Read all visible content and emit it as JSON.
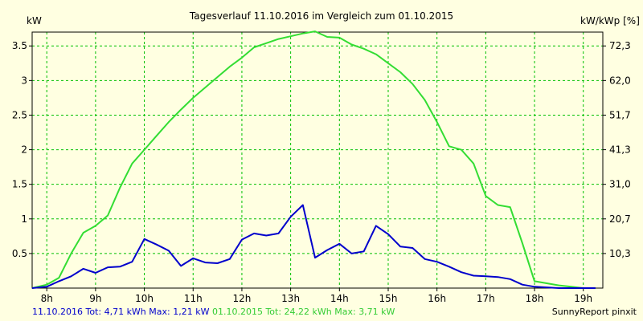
{
  "chart_data": {
    "type": "line",
    "title": "Tagesverlauf 11.10.2016 im Vergleich zum 01.10.2015",
    "ylabel_left": "kW",
    "ylabel_right": "kW/kWp [%]",
    "xlim": [
      7.7,
      19.4
    ],
    "ylim": [
      0,
      3.7
    ],
    "yticks_left": [
      {
        "value": 0.5,
        "label": "0.5"
      },
      {
        "value": 1,
        "label": "1"
      },
      {
        "value": 1.5,
        "label": "1.5"
      },
      {
        "value": 2,
        "label": "2"
      },
      {
        "value": 2.5,
        "label": "2.5"
      },
      {
        "value": 3,
        "label": "3"
      },
      {
        "value": 3.5,
        "label": "3.5"
      }
    ],
    "yticks_right": [
      {
        "value": 0.5,
        "label": "10,3"
      },
      {
        "value": 1,
        "label": "20,7"
      },
      {
        "value": 1.5,
        "label": "31,0"
      },
      {
        "value": 2,
        "label": "41,3"
      },
      {
        "value": 2.5,
        "label": "51,7"
      },
      {
        "value": 3,
        "label": "62,0"
      },
      {
        "value": 3.5,
        "label": "72,3"
      }
    ],
    "xticks": [
      {
        "value": 8,
        "label": "8h"
      },
      {
        "value": 9,
        "label": "9h"
      },
      {
        "value": 10,
        "label": "10h"
      },
      {
        "value": 11,
        "label": "11h"
      },
      {
        "value": 12,
        "label": "12h"
      },
      {
        "value": 13,
        "label": "13h"
      },
      {
        "value": 14,
        "label": "14h"
      },
      {
        "value": 15,
        "label": "15h"
      },
      {
        "value": 16,
        "label": "16h"
      },
      {
        "value": 17,
        "label": "17h"
      },
      {
        "value": 18,
        "label": "18h"
      },
      {
        "value": 19,
        "label": "19h"
      }
    ],
    "grid": true,
    "colors": {
      "background": "#ffffe1",
      "plot_background": "#ffffe1",
      "grid": "#00c000",
      "series_2016": "#0000cc",
      "series_2015": "#33dd33",
      "axis": "#000000"
    },
    "series": [
      {
        "key": "s2015",
        "color": "#33dd33",
        "x": [
          7.7,
          8.0,
          8.25,
          8.5,
          8.75,
          9.0,
          9.25,
          9.5,
          9.75,
          10.0,
          10.25,
          10.5,
          10.75,
          11.0,
          11.25,
          11.5,
          11.75,
          12.0,
          12.25,
          12.5,
          12.75,
          13.0,
          13.25,
          13.5,
          13.75,
          14.0,
          14.25,
          14.5,
          14.75,
          15.0,
          15.25,
          15.5,
          15.75,
          16.0,
          16.25,
          16.5,
          16.75,
          17.0,
          17.25,
          17.5,
          17.75,
          18.0,
          18.25,
          18.5,
          18.75,
          19.0,
          19.25
        ],
        "y": [
          0.0,
          0.05,
          0.15,
          0.5,
          0.8,
          0.9,
          1.05,
          1.45,
          1.8,
          2.0,
          2.2,
          2.4,
          2.58,
          2.75,
          2.9,
          3.05,
          3.2,
          3.33,
          3.48,
          3.54,
          3.6,
          3.64,
          3.68,
          3.71,
          3.63,
          3.62,
          3.52,
          3.46,
          3.38,
          3.25,
          3.12,
          2.95,
          2.72,
          2.4,
          2.05,
          2.0,
          1.8,
          1.33,
          1.2,
          1.17,
          0.65,
          0.1,
          0.07,
          0.04,
          0.02,
          0.0,
          0.0
        ]
      },
      {
        "key": "s2016",
        "color": "#0000cc",
        "x": [
          7.7,
          8.0,
          8.25,
          8.5,
          8.75,
          9.0,
          9.25,
          9.5,
          9.75,
          10.0,
          10.25,
          10.5,
          10.75,
          11.0,
          11.25,
          11.5,
          11.75,
          12.0,
          12.25,
          12.5,
          12.75,
          13.0,
          13.25,
          13.5,
          13.75,
          14.0,
          14.25,
          14.5,
          14.75,
          15.0,
          15.25,
          15.5,
          15.75,
          16.0,
          16.25,
          16.5,
          16.75,
          17.0,
          17.25,
          17.5,
          17.75,
          18.0,
          18.25,
          18.5,
          18.75,
          19.0,
          19.25
        ],
        "y": [
          0.0,
          0.02,
          0.1,
          0.17,
          0.28,
          0.22,
          0.3,
          0.31,
          0.38,
          0.71,
          0.63,
          0.54,
          0.32,
          0.43,
          0.37,
          0.36,
          0.42,
          0.7,
          0.79,
          0.76,
          0.79,
          1.03,
          1.2,
          0.44,
          0.55,
          0.64,
          0.5,
          0.53,
          0.9,
          0.78,
          0.6,
          0.58,
          0.42,
          0.38,
          0.31,
          0.23,
          0.18,
          0.17,
          0.16,
          0.13,
          0.05,
          0.02,
          0.01,
          0.0,
          0.0,
          0.0,
          0.0
        ]
      }
    ]
  },
  "footer": {
    "left_2016": "11.10.2016 Tot: 4,71 kWh Max: 1,21 kW",
    "left_2015": "01.10.2015 Tot: 24,22 kWh Max: 3,71 kW",
    "right": "SunnyReport pinxit"
  }
}
